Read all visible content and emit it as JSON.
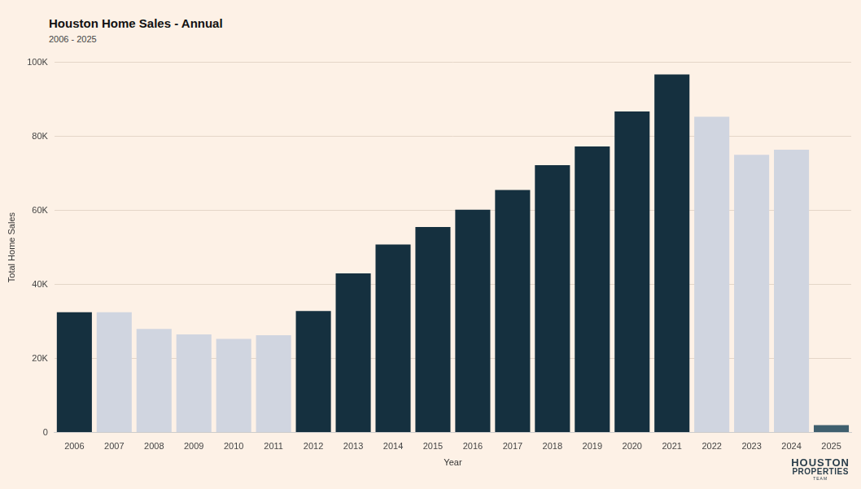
{
  "chart_data": {
    "type": "bar",
    "title": "Houston Home Sales - Annual",
    "subtitle": "2006 - 2025",
    "x_label": "Year",
    "y_label": "Total Home Sales",
    "categories": [
      "2006",
      "2007",
      "2008",
      "2009",
      "2010",
      "2011",
      "2012",
      "2013",
      "2014",
      "2015",
      "2016",
      "2017",
      "2018",
      "2019",
      "2020",
      "2021",
      "2022",
      "2023",
      "2024",
      "2025"
    ],
    "values": [
      32500,
      32500,
      28000,
      26500,
      25300,
      26300,
      32800,
      43000,
      50800,
      55500,
      60200,
      65500,
      72200,
      77300,
      86700,
      96700,
      85300,
      75000,
      76400,
      2000
    ],
    "colors": [
      "#15303f",
      "#d0d5e0",
      "#d0d5e0",
      "#d0d5e0",
      "#d0d5e0",
      "#d0d5e0",
      "#15303f",
      "#15303f",
      "#15303f",
      "#15303f",
      "#15303f",
      "#15303f",
      "#15303f",
      "#15303f",
      "#15303f",
      "#15303f",
      "#d0d5e0",
      "#d0d5e0",
      "#d0d5e0",
      "#3f5f6e"
    ],
    "ylim": [
      0,
      100000
    ],
    "yticks": [
      0,
      {
        "value": 20000,
        "label": "20K"
      },
      {
        "value": 40000,
        "label": "40K"
      },
      {
        "value": 60000,
        "label": "60K"
      },
      {
        "value": 80000,
        "label": "80K"
      },
      {
        "value": 100000,
        "label": "100K"
      }
    ],
    "grid": true,
    "annotations": [
      "HOUSTON",
      "PROPERTIES",
      "TEAM"
    ]
  }
}
